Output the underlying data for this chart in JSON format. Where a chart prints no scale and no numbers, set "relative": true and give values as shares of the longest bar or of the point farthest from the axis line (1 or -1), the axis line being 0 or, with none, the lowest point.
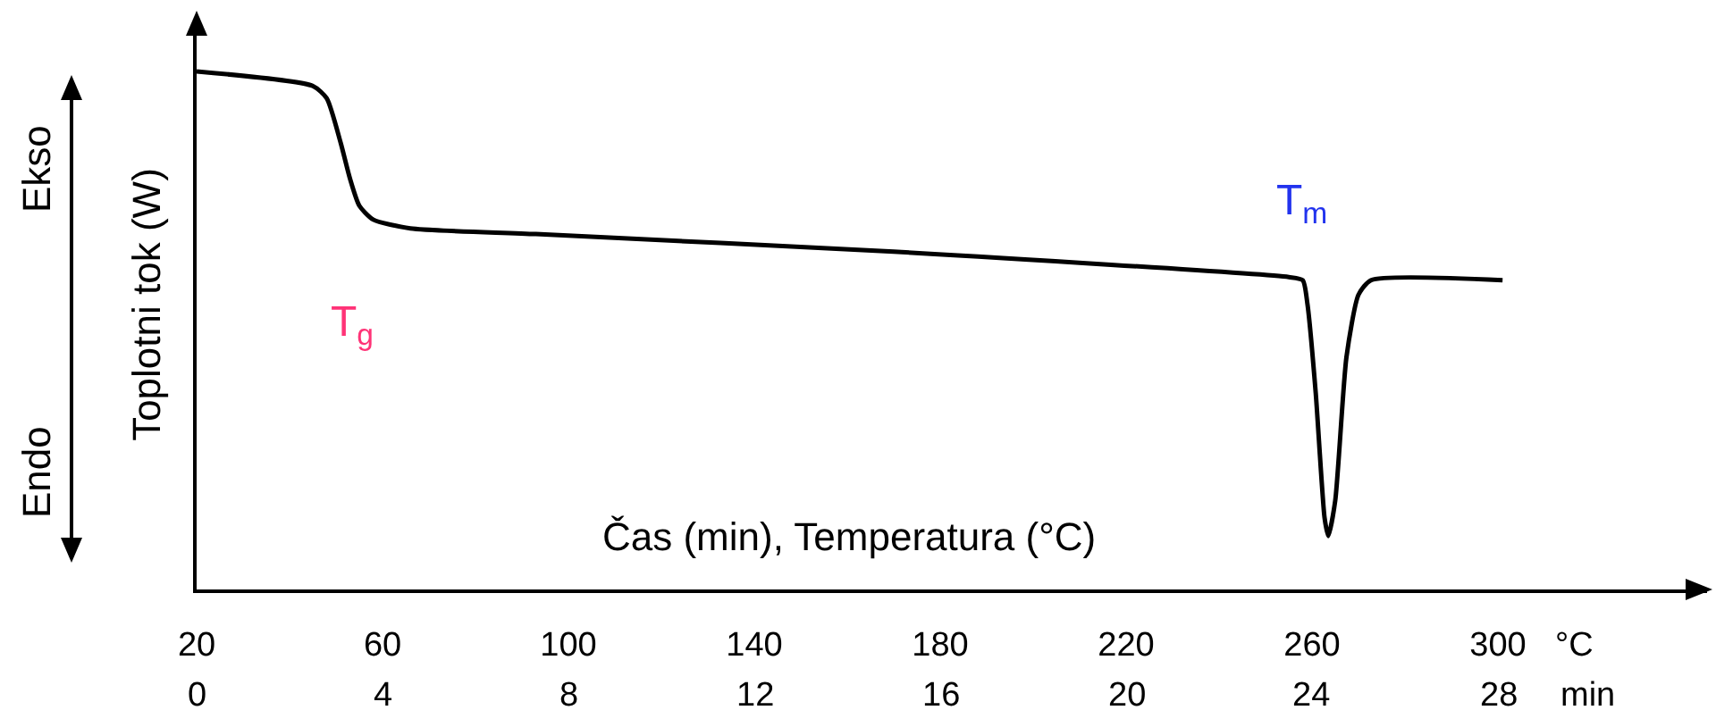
{
  "chart_data": {
    "type": "line",
    "relative": true,
    "x": [
      20,
      45,
      48,
      51,
      53,
      55,
      58,
      66,
      93,
      170,
      255,
      258,
      259,
      260.8,
      262.7,
      263.5,
      265,
      267.4,
      270,
      272.7,
      301
    ],
    "values": [
      1.0,
      0.972,
      0.948,
      0.862,
      0.793,
      0.741,
      0.714,
      0.697,
      0.686,
      0.652,
      0.603,
      0.597,
      0.552,
      0.379,
      0.138,
      0.103,
      0.172,
      0.448,
      0.569,
      0.597,
      0.597
    ],
    "color": "#000000",
    "xlim": [
      20,
      345
    ],
    "xticks": [
      20,
      60,
      100,
      140,
      180,
      220,
      260,
      300
    ],
    "x2lim": [
      0,
      32.5
    ],
    "x2ticks": [
      0,
      4,
      8,
      12,
      16,
      20,
      24,
      28
    ],
    "xlabel": "°C",
    "x2label": "min",
    "ylabel": "Toplotni tok (W)",
    "annotations": [
      "T$_{g}$",
      "T$_{m}$",
      "Čas (min), Temperatura (°C)",
      "Ekso",
      "Endo"
    ]
  }
}
